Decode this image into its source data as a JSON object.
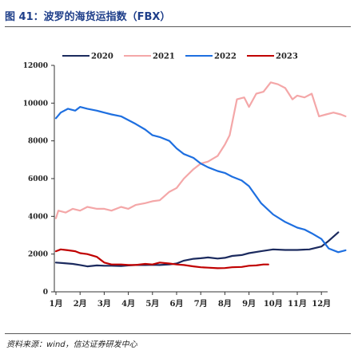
{
  "figure": {
    "title": "图 41：波罗的海货运指数（FBX）",
    "source": "资料来源：wind，信达证券研发中心"
  },
  "chart_data": {
    "type": "line",
    "categories": [
      "1月",
      "2月",
      "3月",
      "4月",
      "5月",
      "6月",
      "7月",
      "8月",
      "9月",
      "10月",
      "11月",
      "12月"
    ],
    "ylim": [
      0,
      12000
    ],
    "yticks": [
      0,
      2000,
      4000,
      6000,
      8000,
      10000,
      12000
    ],
    "grid": false,
    "legend_position": "top",
    "series": [
      {
        "name": "2020",
        "color": "#1b2a5e",
        "x": [
          0,
          0.3,
          0.7,
          1,
          1.3,
          1.7,
          2,
          2.3,
          2.7,
          3,
          3.3,
          3.7,
          4,
          4.3,
          4.7,
          5,
          5.3,
          5.7,
          6,
          6.3,
          6.7,
          7,
          7.3,
          7.7,
          8,
          8.5,
          9,
          9.5,
          10,
          10.5,
          11,
          11.3,
          11.7
        ],
        "values": [
          1550,
          1520,
          1480,
          1420,
          1350,
          1400,
          1380,
          1380,
          1370,
          1400,
          1420,
          1420,
          1430,
          1420,
          1450,
          1500,
          1650,
          1750,
          1780,
          1820,
          1760,
          1800,
          1900,
          1950,
          2050,
          2150,
          2250,
          2220,
          2220,
          2250,
          2400,
          2700,
          3150
        ]
      },
      {
        "name": "2021",
        "color": "#f4a7a8",
        "x": [
          0,
          0.1,
          0.4,
          0.7,
          1,
          1.3,
          1.7,
          2,
          2.3,
          2.7,
          3,
          3.3,
          3.7,
          4,
          4.3,
          4.7,
          5,
          5.3,
          5.7,
          6,
          6.3,
          6.7,
          7,
          7.2,
          7.5,
          7.8,
          8,
          8.3,
          8.6,
          8.9,
          9.2,
          9.5,
          9.8,
          10,
          10.3,
          10.6,
          10.9,
          11.2,
          11.5,
          11.8,
          12
        ],
        "values": [
          3900,
          4300,
          4200,
          4400,
          4300,
          4500,
          4400,
          4400,
          4300,
          4500,
          4400,
          4600,
          4700,
          4800,
          4850,
          5300,
          5500,
          6000,
          6500,
          6800,
          6900,
          7200,
          7800,
          8300,
          10200,
          10300,
          9800,
          10500,
          10600,
          11100,
          11000,
          10800,
          10200,
          10400,
          10300,
          10500,
          9300,
          9400,
          9500,
          9400,
          9300
        ]
      },
      {
        "name": "2022",
        "color": "#1e6fe0",
        "x": [
          0,
          0.2,
          0.5,
          0.8,
          1,
          1.3,
          1.7,
          2,
          2.3,
          2.7,
          3,
          3.3,
          3.7,
          4,
          4.3,
          4.7,
          5,
          5.3,
          5.7,
          6,
          6.3,
          6.7,
          7,
          7.3,
          7.7,
          8,
          8.5,
          9,
          9.5,
          10,
          10.3,
          10.6,
          11,
          11.3,
          11.7,
          12
        ],
        "values": [
          9200,
          9500,
          9700,
          9600,
          9800,
          9700,
          9600,
          9500,
          9400,
          9300,
          9100,
          8900,
          8600,
          8300,
          8200,
          8000,
          7600,
          7300,
          7100,
          6800,
          6600,
          6400,
          6300,
          6100,
          5900,
          5600,
          4700,
          4100,
          3700,
          3400,
          3300,
          3100,
          2800,
          2300,
          2100,
          2200
        ]
      },
      {
        "name": "2023",
        "color": "#c00000",
        "x": [
          0,
          0.2,
          0.5,
          0.8,
          1,
          1.3,
          1.7,
          2,
          2.3,
          2.7,
          3,
          3.3,
          3.7,
          4,
          4.3,
          4.7,
          5,
          5.3,
          5.7,
          6,
          6.3,
          6.7,
          7,
          7.3,
          7.7,
          8,
          8.3,
          8.6,
          8.8
        ],
        "values": [
          2150,
          2250,
          2200,
          2150,
          2050,
          2000,
          1850,
          1550,
          1450,
          1450,
          1420,
          1420,
          1480,
          1450,
          1550,
          1500,
          1450,
          1420,
          1350,
          1300,
          1280,
          1250,
          1260,
          1300,
          1320,
          1380,
          1400,
          1450,
          1450
        ]
      }
    ]
  }
}
